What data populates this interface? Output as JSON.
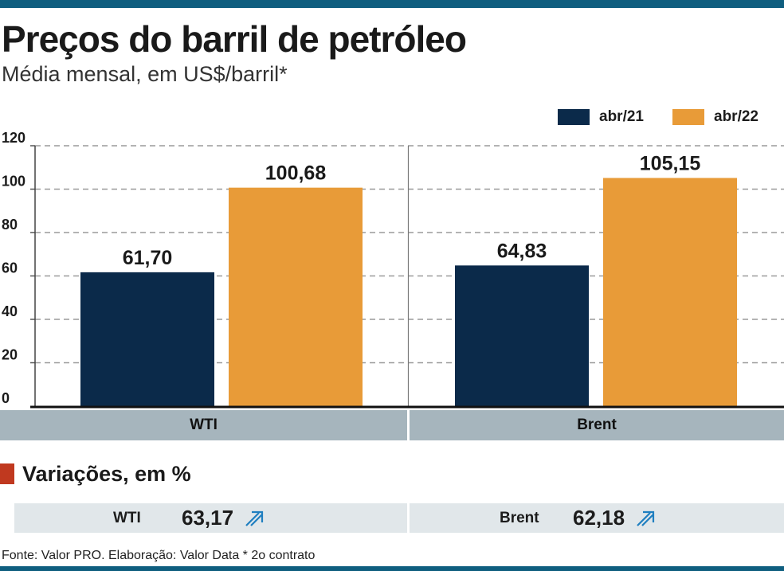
{
  "title": "Preços do barril de petróleo",
  "subtitle": "Média mensal, em US$/barril*",
  "colors": {
    "accent": "#0f5e7f",
    "series_abr21": "#0b2a4a",
    "series_abr22": "#e89b38",
    "category_bar": "#a6b5bd",
    "variation_bar": "#e1e7ea",
    "variation_marker": "#c0391f",
    "arrow": "#1f7fc0"
  },
  "chart_data": {
    "type": "bar",
    "categories": [
      "WTI",
      "Brent"
    ],
    "series": [
      {
        "name": "abr/21",
        "values": [
          61.7,
          64.83
        ],
        "labels": [
          "61,70",
          "64,83"
        ]
      },
      {
        "name": "abr/22",
        "values": [
          100.68,
          105.15
        ],
        "labels": [
          "100,68",
          "105,15"
        ]
      }
    ],
    "ylim": [
      0,
      120
    ],
    "yticks": [
      "0",
      "20",
      "40",
      "60",
      "80",
      "100",
      "120"
    ],
    "grid": true,
    "legend": "top-right"
  },
  "variations": {
    "heading": "Variações, em %",
    "items": [
      {
        "name": "WTI",
        "value": "63,17",
        "icon": "up-arrow-icon"
      },
      {
        "name": "Brent",
        "value": "62,18",
        "icon": "up-arrow-icon"
      }
    ]
  },
  "source": "Fonte: Valor PRO. Elaboração: Valor Data * 2o contrato"
}
